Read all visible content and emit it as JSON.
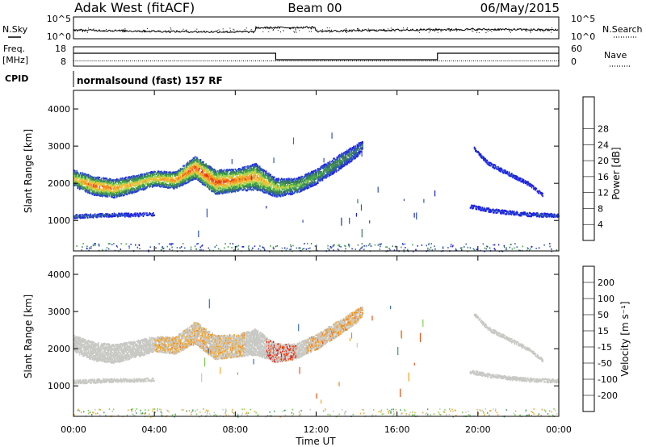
{
  "header": {
    "station": "Adak West (fitACF)",
    "beam": "Beam 00",
    "date": "06/May/2015"
  },
  "labels": {
    "nsky": "N.Sky",
    "nsearch": "N.Search",
    "freq": "Freq.",
    "freq_unit": "[MHz]",
    "nave": "Nave",
    "cpid": "CPID",
    "cpid_value": "normalsound (fast) 157 RF",
    "slant_range": "Slant Range [km]",
    "time_axis": "Time UT",
    "power_label": "Power [dB]",
    "velocity_label": "Velocity [m s⁻¹]"
  },
  "noise_ticks": {
    "upper": "10^5",
    "lower": "10^0"
  },
  "freq_ticks": {
    "upper": "18",
    "lower": "8"
  },
  "nave_ticks": {
    "upper": "60",
    "lower": "0"
  },
  "chart_data": [
    {
      "type": "heatmap",
      "panel": "power",
      "title": "Beam 00",
      "xlabel": "Time UT",
      "ylabel": "Slant Range [km]",
      "x_tick_labels": [
        "00:00",
        "04:00",
        "08:00",
        "12:00",
        "16:00",
        "20:00",
        "00:00"
      ],
      "xlim_hours": [
        0,
        24
      ],
      "ylim_km": [
        180,
        4500
      ],
      "y_ticks": [
        1000,
        2000,
        3000,
        4000
      ],
      "colorbar": {
        "label": "Power [dB]",
        "ticks": [
          4,
          8,
          12,
          16,
          20,
          24,
          28
        ],
        "range": [
          0,
          32
        ],
        "colors": [
          "#1e1ee6",
          "#2a50c8",
          "#3c7a5c",
          "#3ea04a",
          "#a6d44c",
          "#f3c03a",
          "#f39020",
          "#e84a14",
          "#d81010"
        ]
      },
      "bands": [
        {
          "name": "main F-region scatter",
          "t": [
            0.0,
            1.0,
            2.0,
            3.0,
            4.0,
            5.0,
            6.0,
            7.0,
            8.0,
            9.0,
            10.0,
            11.0,
            12.0,
            13.0,
            14.0,
            14.3
          ],
          "center_km": [
            2150,
            1950,
            1880,
            2000,
            2150,
            2100,
            2450,
            2050,
            2100,
            2200,
            1900,
            1950,
            2200,
            2550,
            2900,
            3050
          ],
          "width_km": [
            450,
            500,
            500,
            450,
            400,
            450,
            600,
            650,
            600,
            700,
            500,
            400,
            400,
            400,
            350,
            250
          ],
          "peak_power": [
            20,
            26,
            24,
            20,
            22,
            24,
            28,
            28,
            26,
            24,
            18,
            16,
            14,
            12,
            10,
            8
          ]
        },
        {
          "name": "near-range scatter",
          "t": [
            0.0,
            1.0,
            2.0,
            3.0,
            4.0
          ],
          "center_km": [
            1130,
            1150,
            1170,
            1170,
            1190
          ],
          "width_km": [
            100,
            100,
            90,
            90,
            80
          ],
          "peak_power": [
            8,
            8,
            6,
            5,
            4
          ]
        },
        {
          "name": "late-day scatter A",
          "t": [
            19.8,
            20.5,
            21.5,
            22.5,
            23.2
          ],
          "center_km": [
            2950,
            2550,
            2280,
            2000,
            1700
          ],
          "width_km": [
            80,
            100,
            100,
            90,
            70
          ],
          "peak_power": [
            4,
            5,
            5,
            4,
            4
          ]
        },
        {
          "name": "late-day scatter B",
          "t": [
            19.6,
            20.5,
            21.5,
            22.5,
            24.0
          ],
          "center_km": [
            1400,
            1300,
            1230,
            1180,
            1150
          ],
          "width_km": [
            90,
            100,
            100,
            100,
            90
          ],
          "peak_power": [
            4,
            5,
            6,
            6,
            6
          ]
        }
      ]
    },
    {
      "type": "heatmap",
      "panel": "velocity",
      "xlabel": "Time UT",
      "ylabel": "Slant Range [km]",
      "x_tick_labels": [
        "00:00",
        "04:00",
        "08:00",
        "12:00",
        "16:00",
        "20:00",
        "00:00"
      ],
      "xlim_hours": [
        0,
        24
      ],
      "ylim_km": [
        180,
        4500
      ],
      "y_ticks": [
        1000,
        2000,
        3000,
        4000
      ],
      "colorbar": {
        "label": "Velocity [m s⁻¹]",
        "ticks": [
          -200,
          -100,
          -50,
          -15,
          15,
          50,
          100,
          200
        ],
        "colors": [
          "#e01010",
          "#f05010",
          "#f08020",
          "#f5a623",
          "#c8c8c4",
          "#7ad050",
          "#3e9a6a",
          "#3a6fbf",
          "#2038d0"
        ]
      },
      "dominant_velocity_ms": -5,
      "notable_patches": [
        {
          "t_start": 4.0,
          "t_end": 8.5,
          "velocity_ms": -40
        },
        {
          "t_start": 9.5,
          "t_end": 11.0,
          "velocity_ms": -200
        },
        {
          "t_start": 11.5,
          "t_end": 14.5,
          "velocity_ms": -50
        }
      ]
    }
  ],
  "colors": {
    "axis": "#000000",
    "background": "#ffffff"
  }
}
